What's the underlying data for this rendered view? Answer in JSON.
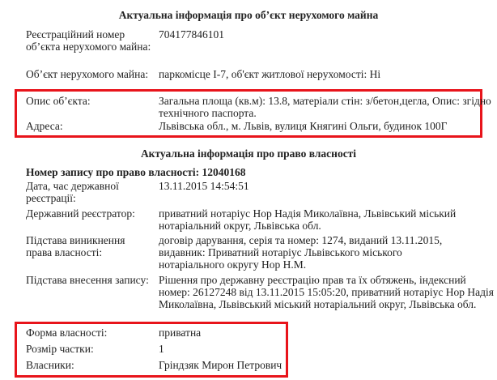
{
  "object_section": {
    "title": "Актуальна інформація про об’єкт нерухомого майна",
    "rows": [
      {
        "label": "Реєстраційний номер об’єкта нерухомого майна:",
        "value": "704177846101"
      },
      {
        "label": "Об’єкт нерухомого майна:",
        "value": "паркомісце І-7, об'єкт житлової нерухомості: Ні"
      },
      {
        "label": "Опис об’єкта:",
        "value": "Загальна площа (кв.м): 13.8, матеріали стін: з/бетон,цегла, Опис: згідно технічного паспорта."
      },
      {
        "label": "Адреса:",
        "value": "Львівська обл., м. Львів, вулиця Княгині Ольги, будинок 100Г"
      }
    ]
  },
  "rights_section": {
    "title": "Актуальна інформація про право власності",
    "record_number": "Номер запису про право власності: 12040168",
    "rows": [
      {
        "label": "Дата, час державної реєстрації:",
        "value": "13.11.2015 14:54:51"
      },
      {
        "label": "Державний реєстратор:",
        "value": "приватний нотаріус Нор Надія Миколаївна, Львівський міський нотаріальний округ, Львівська обл."
      },
      {
        "label": "Підстава виникнення права власності:",
        "value": "договір дарування, серія та номер: 1274, виданий 13.11.2015, видавник: Приватний нотаріус Львівського міського нотаріального округу Нор Н.М."
      },
      {
        "label": "Підстава внесення запису:",
        "value": "Рішення про державну реєстрацію прав та їх обтяжень, індексний номер: 26127248 від 13.11.2015 15:05:20, приватний нотаріус Нор Надія Миколаївна, Львівський міський нотаріальний округ, Львівська обл."
      },
      {
        "label": "Форма власності:",
        "value": "приватна"
      },
      {
        "label": "Розмір частки:",
        "value": "1"
      },
      {
        "label": "Власники:",
        "value": "Гріндзяк Мирон Петрович"
      }
    ]
  },
  "highlight_color": "#e8141b"
}
